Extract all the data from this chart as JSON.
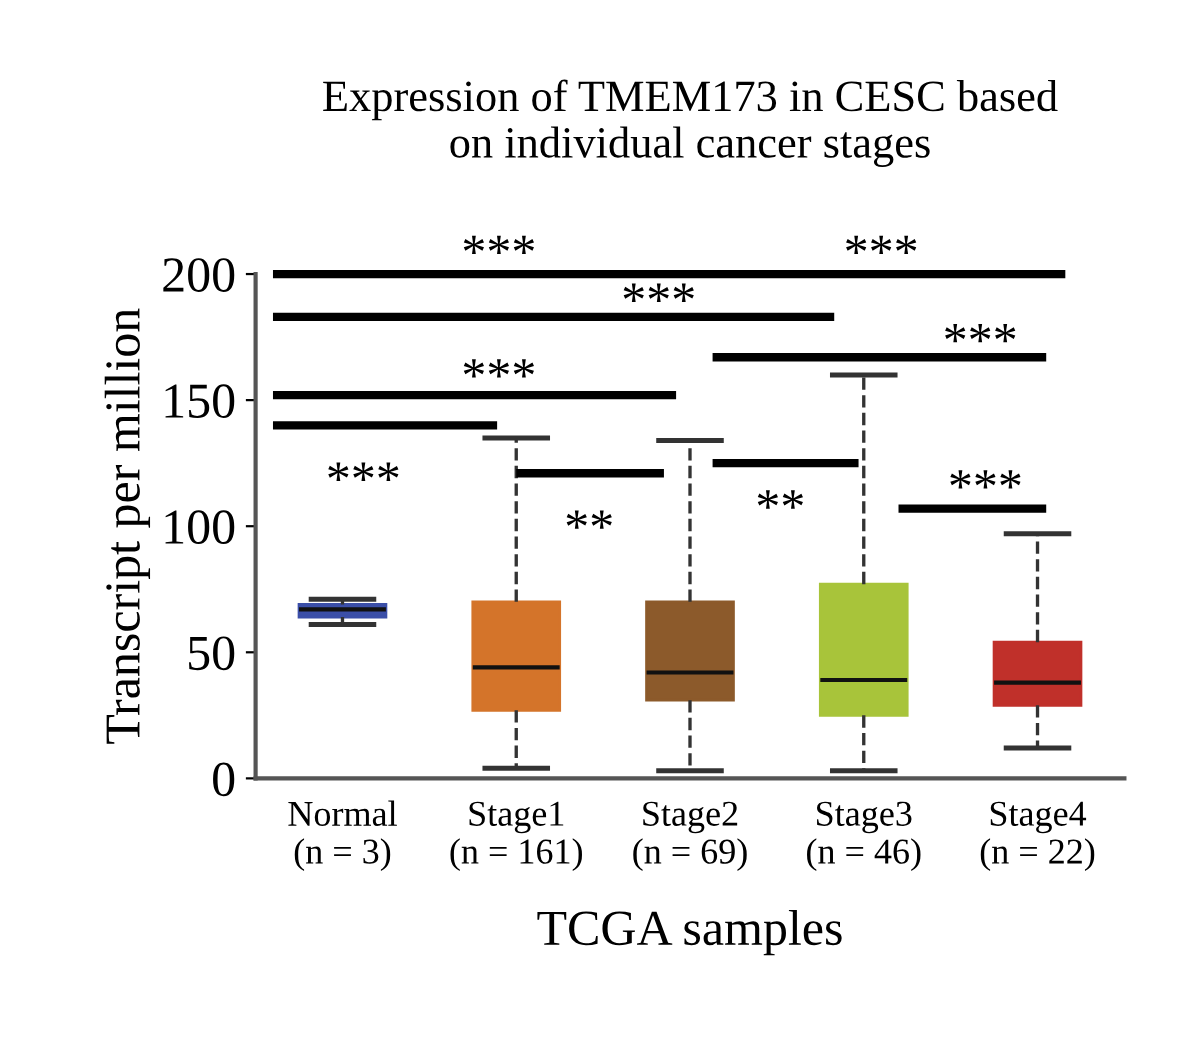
{
  "chart_data": {
    "type": "box",
    "title": "Expression of TMEM173 in CESC based\non individual cancer stages",
    "xlabel": "TCGA samples",
    "ylabel": "Transcript per million",
    "categories": [
      "Normal\n(n = 3)",
      "Stage1\n(n = 161)",
      "Stage2\n(n = 69)",
      "Stage3\n(n = 46)",
      "Stage4\n(n = 22)"
    ],
    "colors": [
      "#3b4fa8",
      "#d4742a",
      "#8c5a2b",
      "#a8c43a",
      "#c0302a"
    ],
    "boxes": [
      {
        "low": 61,
        "q1": 64,
        "median": 67,
        "q3": 69,
        "high": 71
      },
      {
        "low": 4,
        "q1": 27,
        "median": 44,
        "q3": 70,
        "high": 135
      },
      {
        "low": 3,
        "q1": 31,
        "median": 42,
        "q3": 70,
        "high": 134
      },
      {
        "low": 3,
        "q1": 25,
        "median": 39,
        "q3": 77,
        "high": 160
      },
      {
        "low": 12,
        "q1": 29,
        "median": 38,
        "q3": 54,
        "high": 97
      }
    ],
    "ylim": [
      0,
      200
    ],
    "yticks": [
      0,
      50,
      100,
      150,
      200
    ],
    "grid": false,
    "legend": false,
    "annotations": [
      "***",
      "***",
      "***",
      "***",
      "***",
      "***",
      "**",
      "**",
      "***"
    ]
  }
}
